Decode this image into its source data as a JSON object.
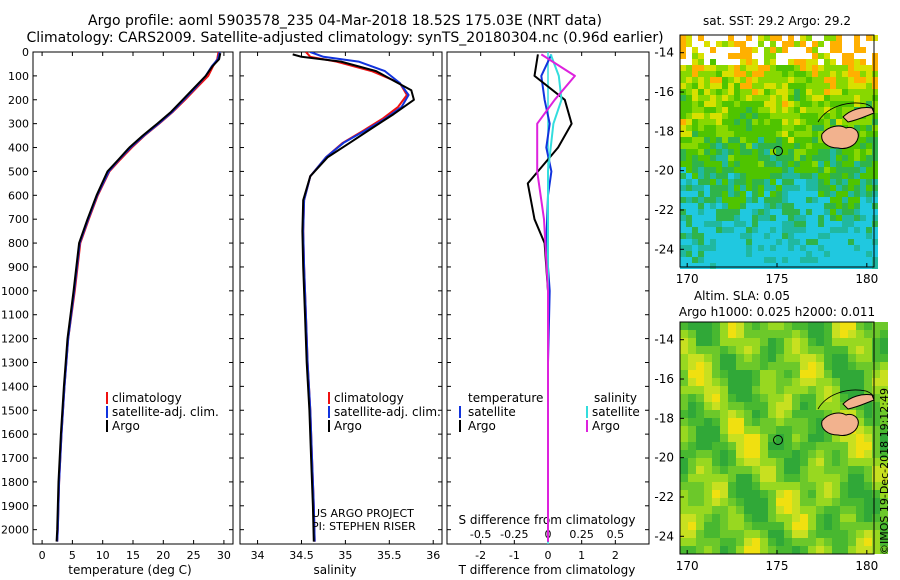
{
  "header": {
    "line1": "Argo profile: aoml 5903578_235 04-Mar-2018 18.52S 175.03E (NRT data)",
    "line2": "Climatology: CARS2009. Satellite-adjusted climatology: synTS_20180304.nc (0.96d earlier)"
  },
  "colors": {
    "climatology": "#ee1111",
    "satellite": "#1133dd",
    "argo": "#000000",
    "sat_salinity": "#33dddd",
    "argo_salinity": "#dd22dd"
  },
  "depth_axis": {
    "ticks": [
      0,
      100,
      200,
      300,
      400,
      500,
      600,
      700,
      800,
      900,
      1000,
      1100,
      1200,
      1300,
      1400,
      1500,
      1600,
      1700,
      1800,
      1900,
      2000
    ],
    "range": [
      0,
      2060
    ]
  },
  "chart_data": [
    {
      "type": "line",
      "id": "temperature",
      "xlabel": "temperature (deg C)",
      "xlim": [
        -1.5,
        31.5
      ],
      "xticks": [
        0,
        5,
        10,
        15,
        20,
        25,
        30
      ],
      "series": [
        {
          "name": "climatology",
          "x": [
            29.1,
            28.9,
            28.2,
            27.4,
            25.5,
            23.6,
            21.6,
            19.3,
            16.9,
            14.8,
            12.9,
            11.1,
            9.2,
            7.7,
            6.3,
            5.4,
            4.3,
            3.7,
            3.2,
            2.8,
            2.6,
            2.5
          ],
          "depth": [
            0,
            30,
            60,
            100,
            150,
            200,
            250,
            300,
            350,
            400,
            450,
            500,
            600,
            700,
            800,
            1000,
            1200,
            1400,
            1600,
            1800,
            2000,
            2050
          ]
        },
        {
          "name": "satellite-adj. clim.",
          "x": [
            29.3,
            29.0,
            28.0,
            27.0,
            25.3,
            23.4,
            21.5,
            19.2,
            16.8,
            14.6,
            12.7,
            11.0,
            9.1,
            7.6,
            6.2,
            5.3,
            4.3,
            3.7,
            3.2,
            2.8,
            2.6,
            2.5
          ],
          "depth": [
            0,
            30,
            60,
            100,
            150,
            200,
            250,
            300,
            350,
            400,
            450,
            500,
            600,
            700,
            800,
            1000,
            1200,
            1400,
            1600,
            1800,
            2000,
            2050
          ]
        },
        {
          "name": "Argo",
          "x": [
            29.4,
            29.2,
            28.1,
            27.0,
            25.1,
            23.2,
            21.3,
            19.0,
            16.6,
            14.4,
            12.6,
            10.8,
            9.0,
            7.5,
            6.1,
            5.2,
            4.2,
            3.6,
            3.1,
            2.7,
            2.5,
            2.4
          ],
          "depth": [
            5,
            30,
            60,
            100,
            150,
            200,
            250,
            300,
            350,
            400,
            450,
            500,
            600,
            700,
            800,
            1000,
            1200,
            1400,
            1600,
            1800,
            2000,
            2050
          ]
        }
      ],
      "legend": {
        "title": "",
        "entries": [
          "climatology",
          "satellite-adj. clim.",
          "Argo"
        ]
      }
    },
    {
      "type": "line",
      "id": "salinity",
      "xlabel": "salinity",
      "xlim": [
        33.8,
        36.1
      ],
      "xticks": [
        34,
        34.5,
        35,
        35.5,
        36
      ],
      "xticklabels": [
        "34",
        "34.5",
        "35",
        "35.5",
        "36"
      ],
      "series": [
        {
          "name": "climatology",
          "x": [
            34.55,
            34.6,
            34.9,
            35.3,
            35.62,
            35.7,
            35.6,
            35.42,
            35.2,
            34.97,
            34.78,
            34.6,
            34.53,
            34.52,
            34.53,
            34.55,
            34.57,
            34.6,
            34.62,
            34.64,
            34.65
          ],
          "depth": [
            0,
            20,
            40,
            80,
            130,
            180,
            230,
            280,
            330,
            380,
            440,
            520,
            620,
            750,
            900,
            1100,
            1300,
            1500,
            1700,
            1900,
            2050
          ]
        },
        {
          "name": "satellite-adj. clim.",
          "x": [
            34.6,
            34.75,
            35.15,
            35.45,
            35.62,
            35.72,
            35.64,
            35.45,
            35.22,
            34.98,
            34.78,
            34.6,
            34.53,
            34.52,
            34.53,
            34.55,
            34.57,
            34.6,
            34.62,
            34.64,
            34.65
          ],
          "depth": [
            0,
            20,
            40,
            80,
            130,
            180,
            230,
            280,
            330,
            380,
            440,
            520,
            620,
            750,
            900,
            1100,
            1300,
            1500,
            1700,
            1900,
            2050
          ]
        },
        {
          "name": "Argo",
          "x": [
            34.4,
            34.5,
            34.95,
            35.35,
            35.55,
            35.75,
            35.78,
            35.55,
            35.3,
            35.05,
            34.8,
            34.6,
            34.52,
            34.51,
            34.52,
            34.54,
            34.56,
            34.59,
            34.61,
            34.63,
            34.64
          ],
          "depth": [
            10,
            20,
            40,
            80,
            120,
            160,
            200,
            260,
            320,
            380,
            440,
            520,
            620,
            750,
            900,
            1100,
            1300,
            1500,
            1700,
            1900,
            2050
          ]
        }
      ],
      "legend": {
        "title": "",
        "entries": [
          "climatology",
          "satellite-adj. clim.",
          "Argo"
        ]
      },
      "annotations": [
        "US ARGO PROJECT",
        "PI: STEPHEN RISER"
      ]
    },
    {
      "type": "line",
      "id": "differences",
      "xlabel": "T difference from climatology",
      "xlim": [
        -3,
        3
      ],
      "xticks": [
        -2,
        -1,
        0,
        1,
        2
      ],
      "top_axis_label": "S difference from climatology",
      "top_ticks": [
        "-0.5",
        "-0.25",
        "0",
        "0.25",
        "0.5"
      ],
      "series": [
        {
          "name": "T satellite",
          "x": [
            0.1,
            -0.2,
            -0.1,
            0.05,
            -0.05,
            0.1,
            0.0,
            -0.05,
            0.05,
            0.0,
            0.0,
            0.0,
            0.0
          ],
          "depth": [
            10,
            100,
            200,
            300,
            400,
            500,
            600,
            800,
            1000,
            1300,
            1600,
            1900,
            2050
          ]
        },
        {
          "name": "T Argo",
          "x": [
            -0.3,
            -0.4,
            0.5,
            0.7,
            0.3,
            -0.6,
            -0.4,
            -0.1,
            0.0,
            0.0,
            0.0,
            0.0,
            0.0
          ],
          "depth": [
            10,
            100,
            200,
            300,
            400,
            550,
            700,
            800,
            1000,
            1300,
            1600,
            1900,
            2050
          ]
        },
        {
          "name": "S satellite",
          "x": [
            0.02,
            0.08,
            0.1,
            0.04,
            0.0,
            0.0,
            0.0,
            0.0,
            0.0,
            0.0
          ],
          "depth": [
            10,
            100,
            200,
            300,
            500,
            700,
            1000,
            1400,
            1800,
            2050
          ]
        },
        {
          "name": "S Argo",
          "x": [
            -0.05,
            0.2,
            0.05,
            -0.08,
            -0.08,
            -0.03,
            0.0,
            0.0,
            0.0,
            0.0
          ],
          "depth": [
            10,
            100,
            200,
            300,
            500,
            700,
            1000,
            1400,
            1800,
            2050
          ]
        }
      ],
      "legend": {
        "temperature_title": "temperature",
        "salinity_title": "salinity",
        "entries": [
          "satellite",
          "Argo"
        ]
      }
    },
    {
      "type": "heatmap",
      "id": "sst_map",
      "title": "sat. SST: 29.2 Argo: 29.2",
      "xticks": [
        170,
        175,
        180
      ],
      "yticks": [
        -14,
        -16,
        -18,
        -20,
        -22,
        -24
      ],
      "marker": {
        "lon": 175.03,
        "lat": -18.52
      }
    },
    {
      "type": "heatmap",
      "id": "sla_map",
      "title_line1": "Altim. SLA: 0.05",
      "title_line2": "Argo h1000: 0.025 h2000: 0.011",
      "xticks": [
        170,
        175,
        180
      ],
      "yticks": [
        -14,
        -16,
        -18,
        -20,
        -22,
        -24
      ],
      "marker": {
        "lon": 175.03,
        "lat": -18.52
      }
    }
  ],
  "footer": {
    "credit": "©IMOS 19-Dec-2018 19:12:49"
  }
}
